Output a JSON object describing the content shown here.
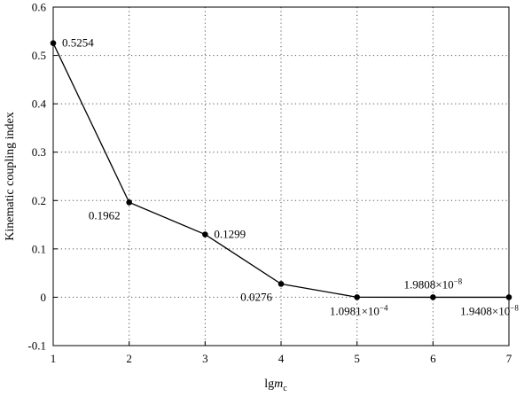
{
  "chart_data": {
    "type": "line",
    "title": "",
    "xlabel": {
      "main": "lg",
      "italic": "m",
      "subscript": "c"
    },
    "ylabel": "Kinematic coupling index",
    "xlim": [
      1,
      7
    ],
    "ylim": [
      -0.1,
      0.6
    ],
    "xticks": [
      1,
      2,
      3,
      4,
      5,
      6,
      7
    ],
    "yticks": [
      -0.1,
      0,
      0.1,
      0.2,
      0.3,
      0.4,
      0.5,
      0.6
    ],
    "xtick_labels": [
      "1",
      "2",
      "3",
      "4",
      "5",
      "6",
      "7"
    ],
    "ytick_labels": [
      "-0.1",
      "0",
      "0.1",
      "0.2",
      "0.3",
      "0.4",
      "0.5",
      "0.6"
    ],
    "grid": true,
    "grid_style": "dotted",
    "series": [
      {
        "x": [
          1,
          2,
          3,
          4,
          5,
          6,
          7
        ],
        "y": [
          0.5254,
          0.1962,
          0.1299,
          0.0276,
          0.00010981,
          1.9808e-08,
          1.9408e-08
        ],
        "labels": [
          {
            "mantissa": "0.5254",
            "exponent": ""
          },
          {
            "mantissa": "0.1962",
            "exponent": ""
          },
          {
            "mantissa": "0.1299",
            "exponent": ""
          },
          {
            "mantissa": "0.0276",
            "exponent": ""
          },
          {
            "mantissa": "1.0981×10",
            "exponent": "−4"
          },
          {
            "mantissa": "1.9808×10",
            "exponent": "−8"
          },
          {
            "mantissa": "1.9408×10",
            "exponent": "−8"
          }
        ],
        "label_placement": [
          "right",
          "below-left",
          "right",
          "below-left",
          "below",
          "above",
          "below"
        ],
        "color": "#000000"
      }
    ]
  }
}
